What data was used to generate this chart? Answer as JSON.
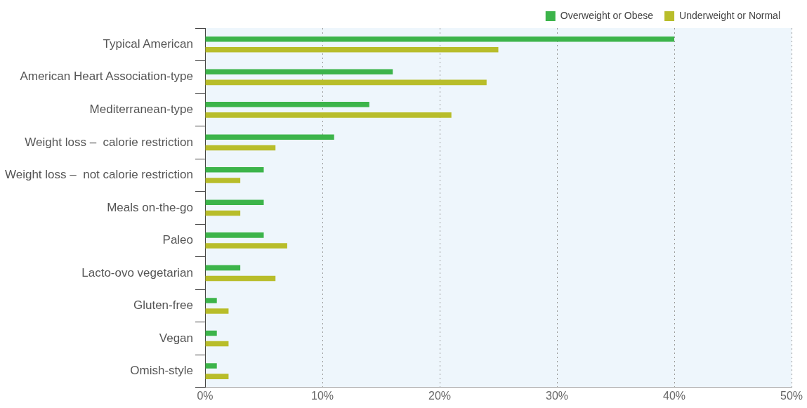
{
  "chart_data": {
    "type": "bar",
    "orientation": "horizontal",
    "categories": [
      "Typical American",
      "American Heart Association-type",
      "Mediterranean-type",
      "Weight loss –  calorie restriction",
      "Weight loss –  not calorie restriction",
      "Meals on-the-go",
      "Paleo",
      "Lacto-ovo vegetarian",
      "Gluten-free",
      "Vegan",
      "Omish-style"
    ],
    "series": [
      {
        "name": "Overweight or Obese",
        "color": "#3cb44a",
        "values": [
          40,
          16,
          14,
          11,
          5,
          5,
          5,
          3,
          1,
          1,
          1
        ]
      },
      {
        "name": "Underweight or Normal",
        "color": "#b8bd2a",
        "values": [
          25,
          24,
          21,
          6,
          3,
          3,
          7,
          6,
          2,
          2,
          2
        ]
      }
    ],
    "xlim": [
      0,
      50
    ],
    "xticks": [
      {
        "value": 0,
        "label": "0%"
      },
      {
        "value": 10,
        "label": "10%"
      },
      {
        "value": 20,
        "label": "20%"
      },
      {
        "value": 30,
        "label": "30%"
      },
      {
        "value": 40,
        "label": "40%"
      },
      {
        "value": 50,
        "label": "50%"
      }
    ],
    "grid": "x",
    "legend": "top right"
  }
}
